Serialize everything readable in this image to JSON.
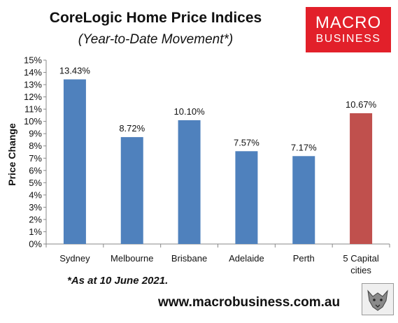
{
  "header": {
    "title": "CoreLogic Home Price Indices",
    "subtitle": "(Year-to-Date Movement*)"
  },
  "logo": {
    "line1": "MACRO",
    "line2": "BUSINESS",
    "color": "#e2202a"
  },
  "footnote": "*As at 10 June 2021.",
  "website": "www.macrobusiness.com.au",
  "chart_data": {
    "type": "bar",
    "title": "CoreLogic Home Price Indices",
    "subtitle": "(Year-to-Date Movement*)",
    "xlabel": "",
    "ylabel": "Price Change",
    "ylim": [
      0,
      15
    ],
    "yticks": [
      0,
      1,
      2,
      3,
      4,
      5,
      6,
      7,
      8,
      9,
      10,
      11,
      12,
      13,
      14,
      15
    ],
    "ytick_labels": [
      "0%",
      "1%",
      "2%",
      "3%",
      "4%",
      "5%",
      "6%",
      "7%",
      "8%",
      "9%",
      "10%",
      "11%",
      "12%",
      "13%",
      "14%",
      "15%"
    ],
    "grid": false,
    "legend": "none",
    "categories": [
      {
        "label": "Sydney",
        "lines": [
          "Sydney"
        ]
      },
      {
        "label": "Melbourne",
        "lines": [
          "Melbourne"
        ]
      },
      {
        "label": "Brisbane",
        "lines": [
          "Brisbane"
        ]
      },
      {
        "label": "Adelaide",
        "lines": [
          "Adelaide"
        ]
      },
      {
        "label": "Perth",
        "lines": [
          "Perth"
        ]
      },
      {
        "label": "5 Capital cities",
        "lines": [
          "5 Capital",
          "cities"
        ]
      }
    ],
    "values": [
      13.43,
      8.72,
      10.1,
      7.57,
      7.17,
      10.67
    ],
    "value_labels": [
      "13.43%",
      "8.72%",
      "10.10%",
      "7.57%",
      "7.17%",
      "10.67%"
    ],
    "colors": [
      "#4f81bd",
      "#4f81bd",
      "#4f81bd",
      "#4f81bd",
      "#4f81bd",
      "#c0504d"
    ]
  }
}
